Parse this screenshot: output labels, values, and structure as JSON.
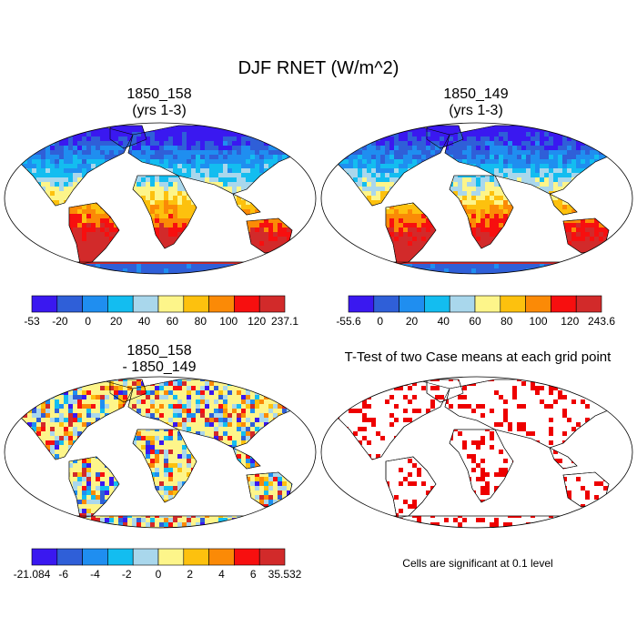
{
  "title": "DJF RNET (W/m^2)",
  "panels": [
    {
      "line1": "1850_158",
      "line2": "(yrs 1-3)"
    },
    {
      "line1": "1850_149",
      "line2": "(yrs 1-3)"
    },
    {
      "line1": "1850_158",
      "line2": "- 1850_149"
    },
    {
      "line1": "T-Test of two Case means at each grid point",
      "note": "Cells are significant at 0.1 level"
    }
  ],
  "colors": {
    "seq": [
      "#3a18f0",
      "#2f5fd8",
      "#1f8ef0",
      "#13bdf0",
      "#a9d7ec",
      "#fdf58a",
      "#fdc10e",
      "#fb8a06",
      "#f70f0f",
      "#d22a2a"
    ],
    "sig": "#ee0000"
  },
  "chart_data": [
    {
      "type": "heatmap",
      "map": "robinson",
      "title": "1850_158 (yrs 1-3)",
      "colorbar": {
        "labels": [
          "-53",
          "-20",
          "0",
          "20",
          "40",
          "60",
          "80",
          "100",
          "120",
          "237.1"
        ]
      }
    },
    {
      "type": "heatmap",
      "map": "robinson",
      "title": "1850_149 (yrs 1-3)",
      "colorbar": {
        "labels": [
          "-55.6",
          "0",
          "20",
          "40",
          "60",
          "80",
          "100",
          "120",
          "243.6"
        ]
      }
    },
    {
      "type": "heatmap",
      "map": "robinson",
      "title": "1850_158 - 1850_149",
      "colorbar": {
        "labels": [
          "-21.084",
          "-6",
          "-4",
          "-2",
          "0",
          "2",
          "4",
          "6",
          "35.532"
        ]
      }
    },
    {
      "type": "heatmap",
      "map": "robinson",
      "title": "T-Test of two Case means at each grid point",
      "note": "Cells are significant at 0.1 level",
      "significance_level": 0.1
    }
  ]
}
